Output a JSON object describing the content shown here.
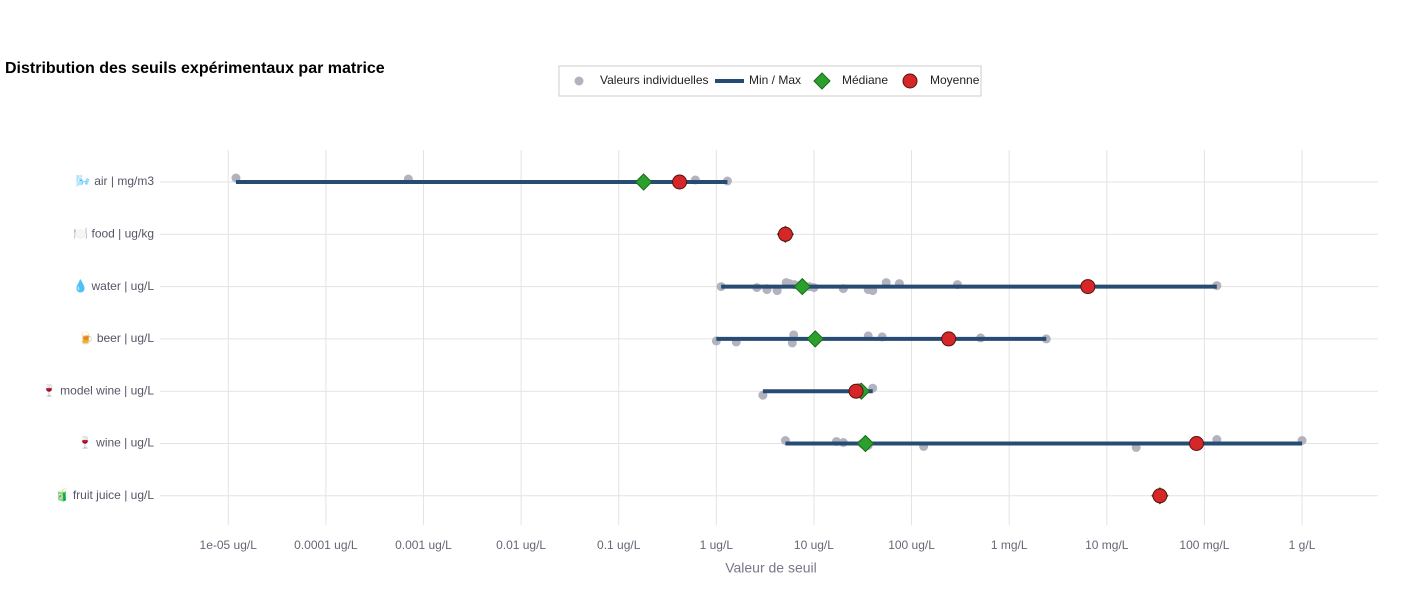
{
  "chart_data": {
    "type": "range-dot",
    "title": "Distribution des seuils expérimentaux par matrice",
    "xlabel": "Valeur de seuil",
    "log_x": true,
    "grid": true,
    "legend": "top",
    "categories": [
      "🌬️ air | mg/m3",
      "🍽️ food | ug/kg",
      "💧 water | ug/L",
      "🍺 beer | ug/L",
      "🍷 model wine | ug/L",
      "🍷 wine | ug/L",
      "🧃 fruit juice | ug/L"
    ],
    "xlim": [
      2e-06,
      6000000
    ],
    "xticks": [
      {
        "value": 1e-05,
        "label": "1e-05 ug/L"
      },
      {
        "value": 0.0001,
        "label": "0.0001 ug/L"
      },
      {
        "value": 0.001,
        "label": "0.001 ug/L"
      },
      {
        "value": 0.01,
        "label": "0.01 ug/L"
      },
      {
        "value": 0.1,
        "label": "0.1 ug/L"
      },
      {
        "value": 1,
        "label": "1 ug/L"
      },
      {
        "value": 10,
        "label": "10 ug/L"
      },
      {
        "value": 100,
        "label": "100 ug/L"
      },
      {
        "value": 1000,
        "label": "1 mg/L"
      },
      {
        "value": 10000,
        "label": "10 mg/L"
      },
      {
        "value": 100000,
        "label": "100 mg/L"
      },
      {
        "value": 1000000,
        "label": "1 g/L"
      }
    ],
    "series": [
      {
        "name": "Valeurs individuelles",
        "color": "#b3b3bf",
        "points": [
          [
            1.2e-05,
            0.0007,
            0.61,
            1.3
          ],
          [
            5.1
          ],
          [
            1.12,
            2.6,
            3.3,
            3.3,
            4.2,
            5.2,
            5.6,
            6.3,
            7.1,
            9,
            10,
            20,
            36,
            40,
            55,
            75,
            295,
            134000
          ],
          [
            1,
            1.6,
            6,
            6.2,
            36,
            50,
            510,
            2400
          ],
          [
            3,
            29,
            40
          ],
          [
            5.1,
            17,
            20,
            31,
            32,
            36,
            133,
            20000,
            134000,
            1000000
          ],
          [
            35000
          ]
        ]
      },
      {
        "name": "Min / Max",
        "color": "#264c73",
        "min": [
          1.2e-05,
          5.1,
          1.12,
          1,
          3,
          5.1,
          35000
        ],
        "max": [
          1.3,
          5.1,
          134000,
          2400,
          40,
          1000000,
          35000
        ]
      },
      {
        "name": "Médiane",
        "color": "#2ca02c",
        "values": [
          0.18,
          5.1,
          7.6,
          10.3,
          30.6,
          33.7,
          35000
        ]
      },
      {
        "name": "Moyenne",
        "color": "#d62728",
        "values": [
          0.42,
          5.1,
          6400,
          240,
          27,
          83000,
          35000
        ]
      }
    ]
  }
}
